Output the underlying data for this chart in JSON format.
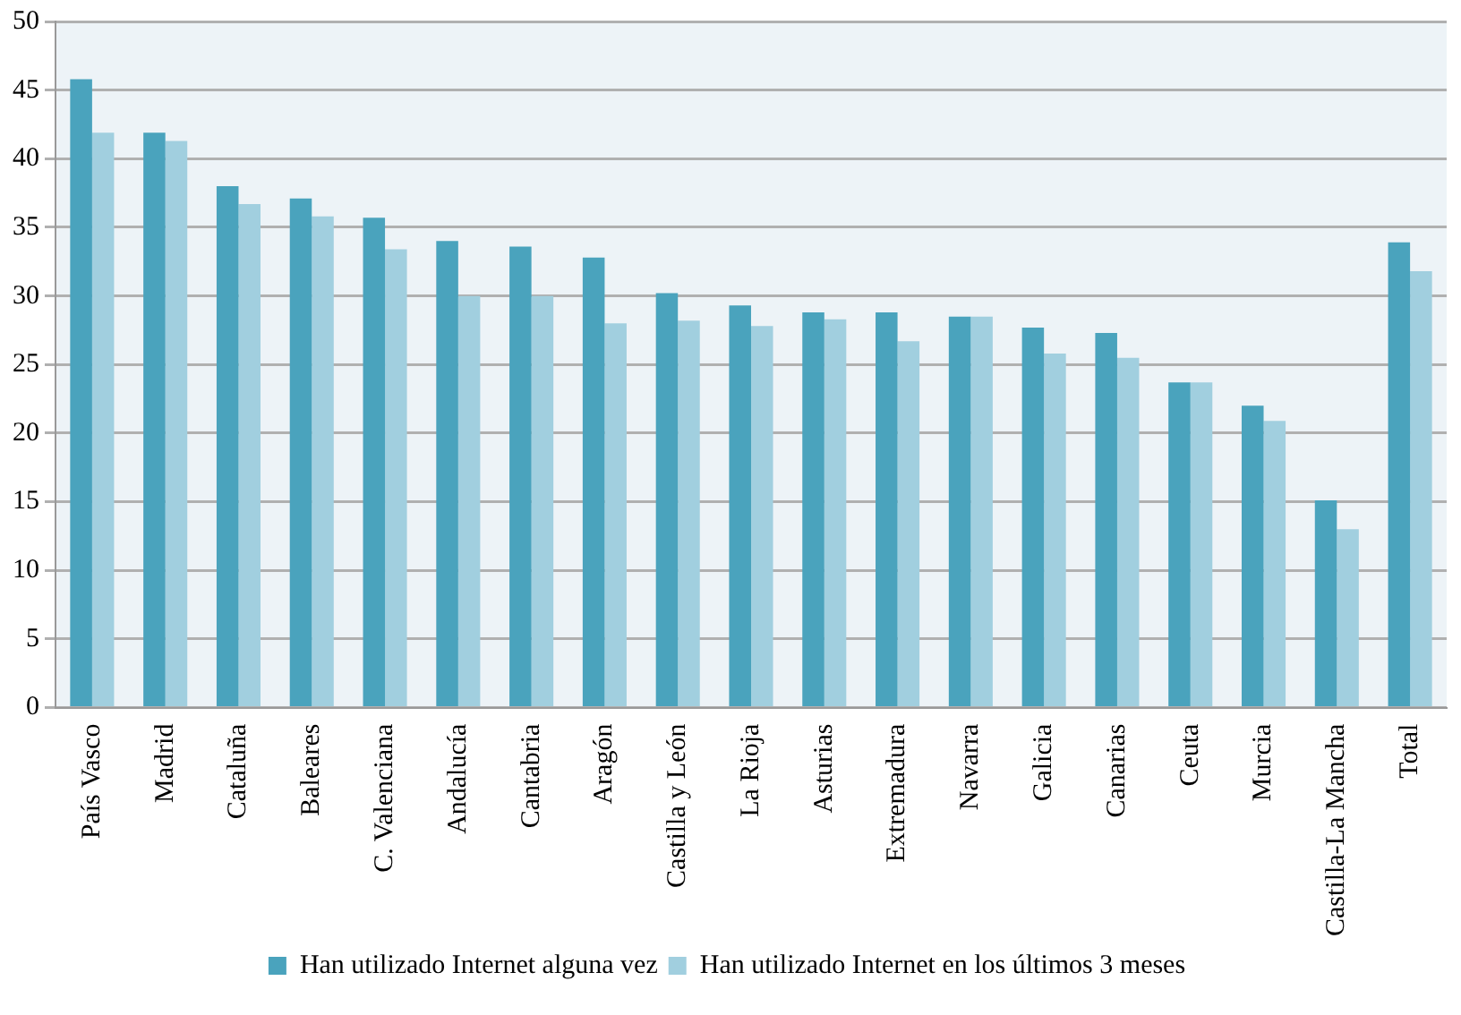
{
  "chart_data": {
    "type": "bar",
    "categories": [
      "País Vasco",
      "Madrid",
      "Cataluña",
      "Baleares",
      "C. Valenciana",
      "Andalucía",
      "Cantabria",
      "Aragón",
      "Castilla y León",
      "La Rioja",
      "Asturias",
      "Extremadura",
      "Navarra",
      "Galicia",
      "Canarias",
      "Ceuta",
      "Murcia",
      "Castilla-La Mancha",
      "Total"
    ],
    "series": [
      {
        "name": "Han utilizado Internet alguna vez",
        "color": "#4aa3bd",
        "values": [
          45.8,
          41.9,
          38.0,
          37.1,
          35.7,
          34.0,
          33.6,
          32.8,
          30.2,
          29.3,
          28.8,
          28.8,
          28.5,
          27.7,
          27.3,
          23.7,
          22.0,
          15.1,
          33.9
        ]
      },
      {
        "name": "Han utilizado Internet en los últimos 3 meses",
        "color": "#a1cfdf",
        "values": [
          41.9,
          41.3,
          36.7,
          35.8,
          33.4,
          30.0,
          30.0,
          28.0,
          28.2,
          27.8,
          28.3,
          26.7,
          28.5,
          25.8,
          25.5,
          23.7,
          20.9,
          13.0,
          31.8
        ]
      }
    ],
    "ylim": [
      0,
      50
    ],
    "yticks": [
      0,
      5,
      10,
      15,
      20,
      25,
      30,
      35,
      40,
      45,
      50
    ],
    "grid": "y",
    "legend": "bottom"
  }
}
